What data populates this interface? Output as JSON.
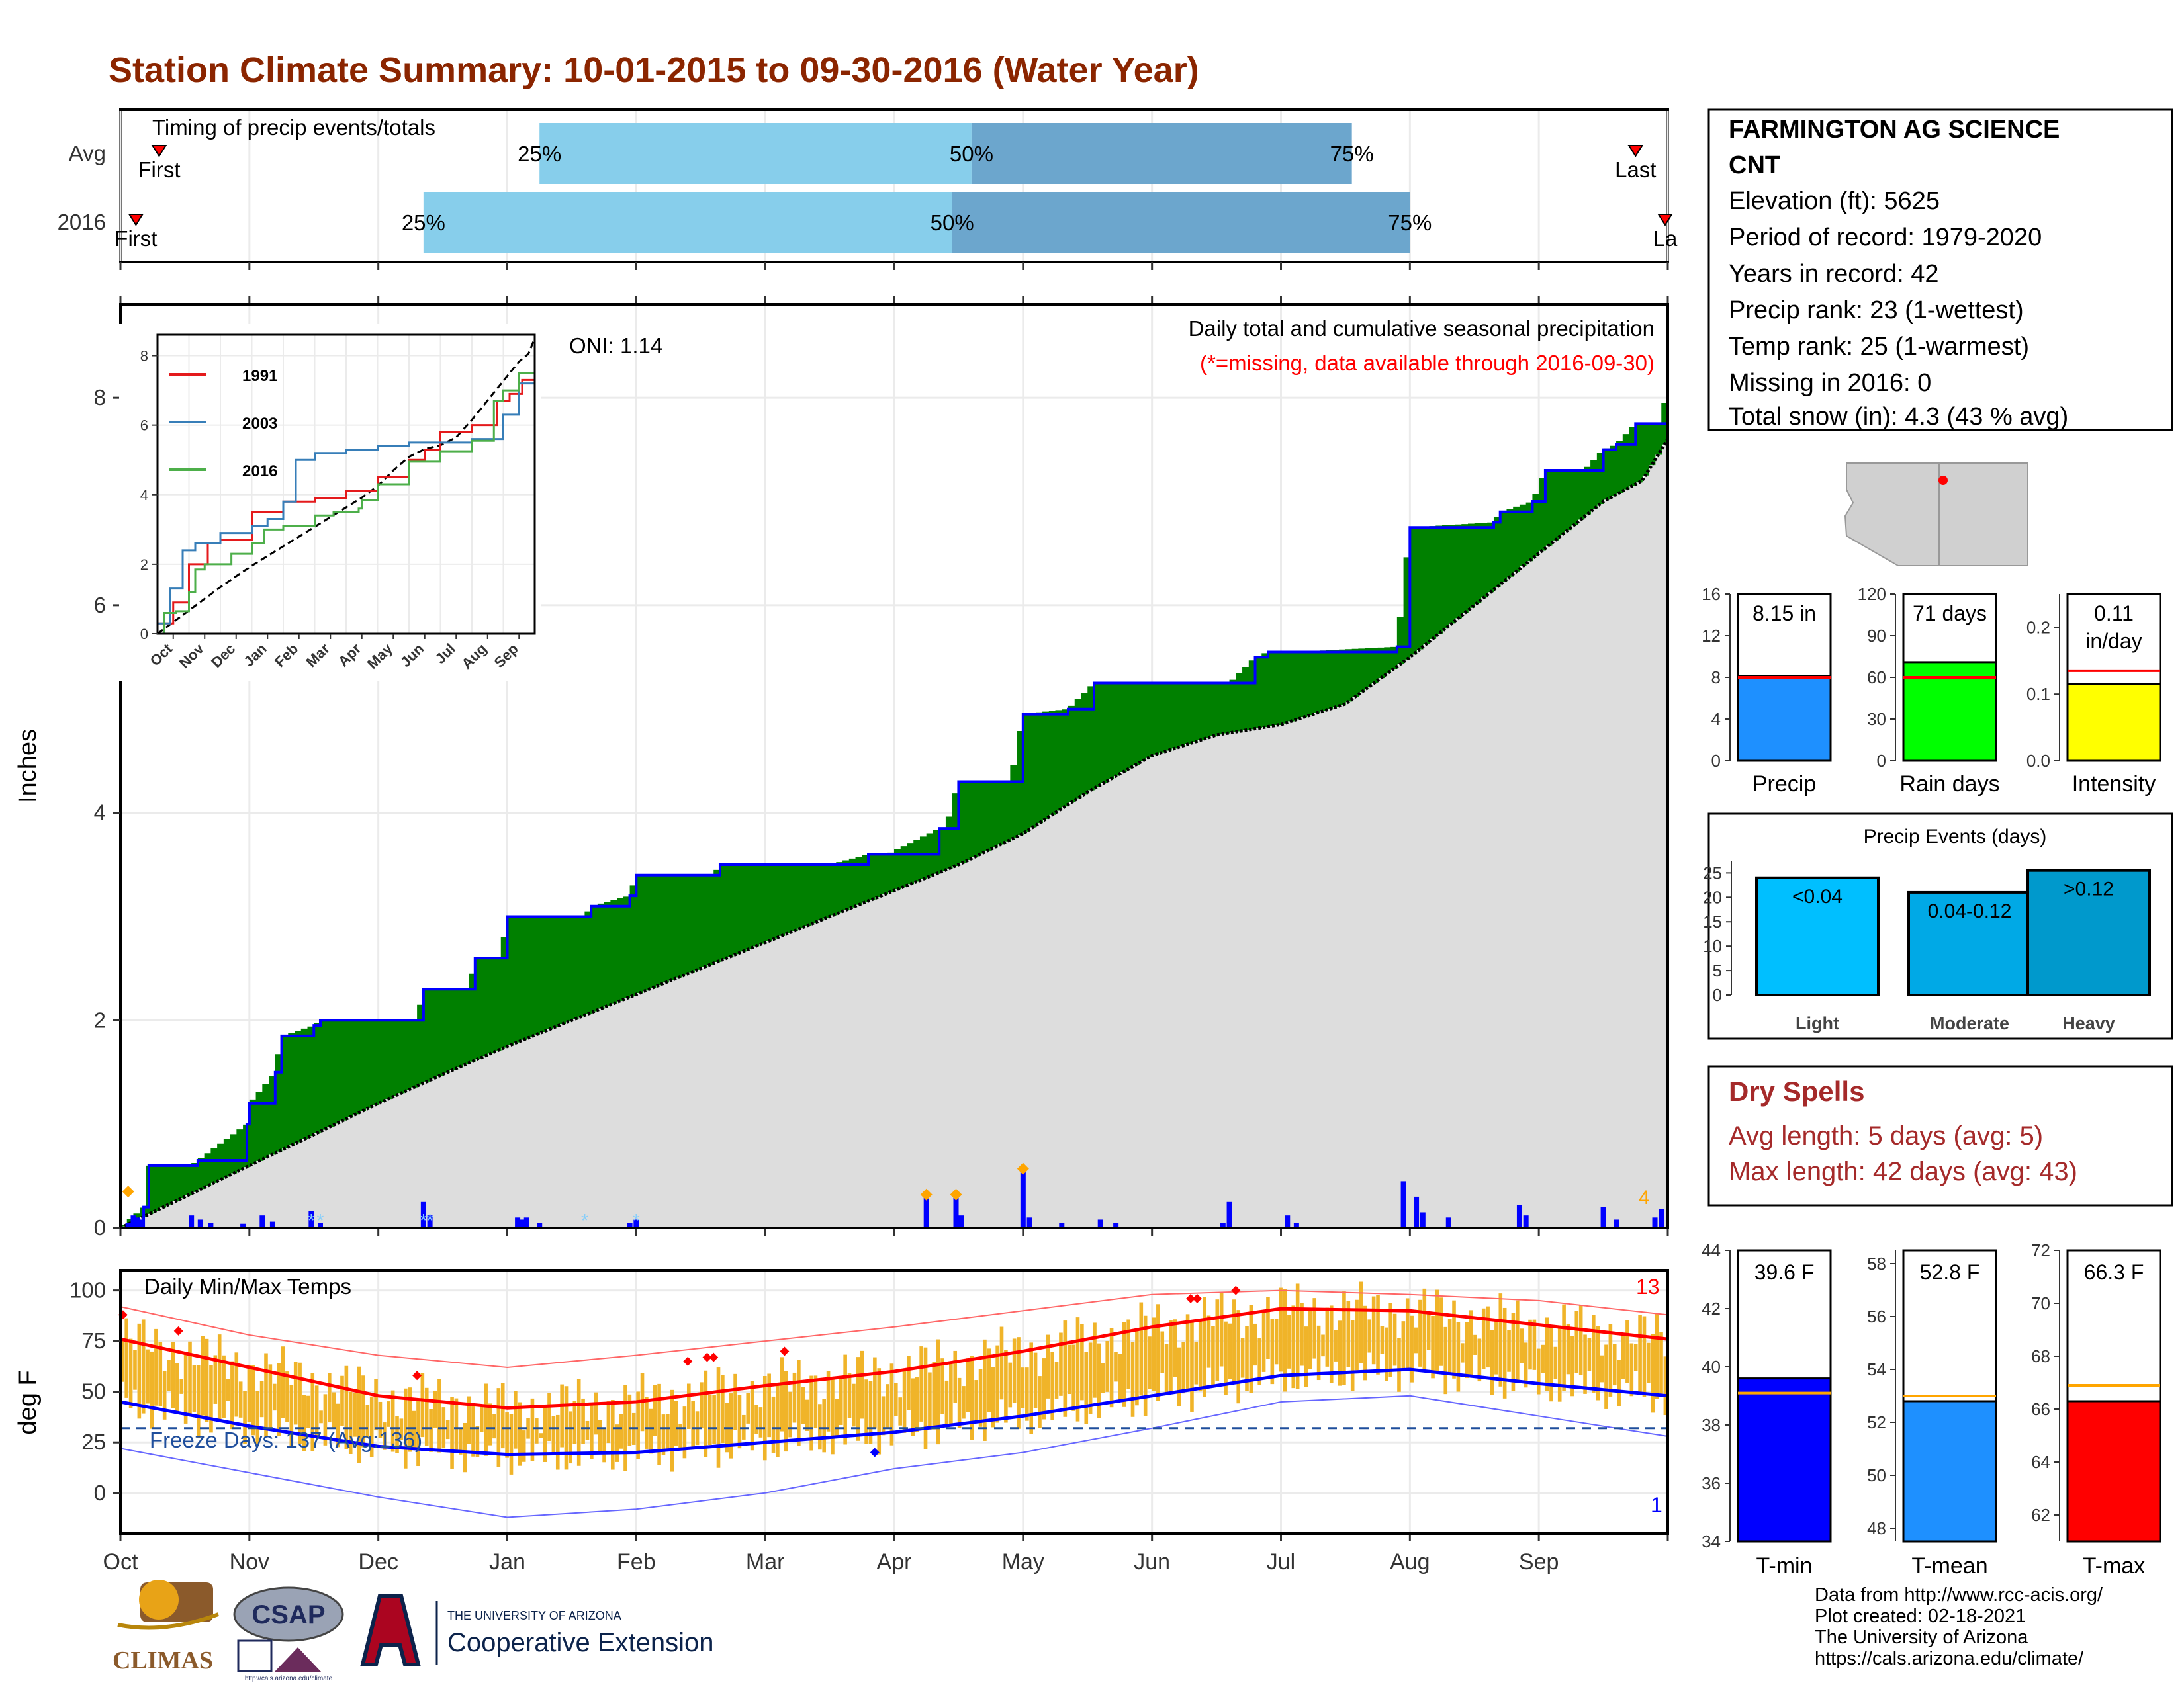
{
  "title": "Station Climate Summary: 10-01-2015 to 09-30-2016 (Water Year)",
  "colors": {
    "title": "#8B2500",
    "green": "#008000",
    "brown": "#8B5A2B",
    "normal_fill": "#DDDDDD",
    "precip_blue": "#0000FF",
    "light_blue": "#87CEEB",
    "dark_blue": "#6CA6CD",
    "temp_bar": "#F0B429",
    "max_red": "#FF0000",
    "min_blue": "#0000FF",
    "dry_spell": "#A52A2A",
    "accent_orange": "#FFA500"
  },
  "timing_panel": {
    "label": "Timing of precip events/totals",
    "rows": [
      {
        "name": "Avg",
        "first_label": "First",
        "last_label": "Last",
        "p25": "25%",
        "p50": "50%",
        "p75": "75%",
        "first_month": 0.3,
        "last_month": 11.75,
        "q25_month": 3.25,
        "q50_month": 6.6,
        "q75_month": 9.55
      },
      {
        "name": "2016",
        "first_label": "First",
        "last_label": "La",
        "p25": "25%",
        "p50": "50%",
        "p75": "75%",
        "first_month": 0.12,
        "last_month": 12.0,
        "q25_month": 2.35,
        "q50_month": 6.45,
        "q75_month": 10.0
      }
    ]
  },
  "precip_panel": {
    "ylabel": "Inches",
    "header": "Daily total and cumulative seasonal precipitation",
    "missing_note": "(*=missing, data available through 2016-09-30)",
    "oni": "ONI: 1.14",
    "corner_count": "4",
    "y_ticks": [
      "0",
      "2",
      "4",
      "6",
      "8"
    ]
  },
  "inset": {
    "legend": [
      "1991",
      "2003",
      "2016"
    ],
    "legend_colors": [
      "#E41A1C",
      "#377EB8",
      "#4DAF4A"
    ],
    "x_ticks": [
      "Oct",
      "Nov",
      "Dec",
      "Jan",
      "Feb",
      "Mar",
      "Apr",
      "May",
      "Jun",
      "Jul",
      "Aug",
      "Sep"
    ],
    "y_ticks": [
      "0",
      "2",
      "4",
      "6",
      "8"
    ]
  },
  "temp_panel": {
    "ylabel": "deg F",
    "label": "Daily Min/Max Temps",
    "freeze_text": "Freeze Days: 137 (Avg:136)",
    "max_count": "13",
    "min_count": "1",
    "y_ticks": [
      "0",
      "25",
      "50",
      "75",
      "100"
    ]
  },
  "months": [
    "Oct",
    "Nov",
    "Dec",
    "Jan",
    "Feb",
    "Mar",
    "Apr",
    "May",
    "Jun",
    "Jul",
    "Aug",
    "Sep"
  ],
  "station_box": {
    "name_line1": "FARMINGTON AG SCIENCE",
    "name_line2": "CNT",
    "lines": [
      "Elevation (ft): 5625",
      "Period of record: 1979-2020",
      "Years in record: 42",
      "Precip rank: 23 (1-wettest)",
      "Temp rank: 25 (1-warmest)",
      "Missing in 2016: 0",
      "Total snow (in): 4.3 (43 % avg)"
    ]
  },
  "summary_bars": [
    {
      "label": "Precip",
      "value_text": "8.15 in",
      "value": 8.15,
      "avg": 8.0,
      "ymax": 16,
      "ticks": [
        "0",
        "4",
        "8",
        "12",
        "16"
      ],
      "color": "#1E90FF"
    },
    {
      "label": "Rain days",
      "value_text": "71 days",
      "value": 71,
      "avg": 60,
      "ymax": 120,
      "ticks": [
        "0",
        "30",
        "60",
        "90",
        "120"
      ],
      "color": "#00FF00"
    },
    {
      "label": "Intensity",
      "value_text": "0.11",
      "value_text2": "in/day",
      "value": 0.115,
      "avg": 0.135,
      "ymax": 0.25,
      "ticks": [
        "0.0",
        "0.1",
        "0.2"
      ],
      "color": "#FFFF00"
    }
  ],
  "events": {
    "title": "Precip Events (days)",
    "ticks": [
      "0",
      "5",
      "10",
      "15",
      "20",
      "25"
    ],
    "bars": [
      {
        "cat": "Light",
        "label": "<0.04",
        "value": 24,
        "color": "#00BFFF"
      },
      {
        "cat": "Moderate",
        "label": "0.04-0.12",
        "value": 21,
        "color": "#00A9E6"
      },
      {
        "cat": "Heavy",
        "label": ">0.12",
        "value": 25.5,
        "color": "#0099CC"
      }
    ]
  },
  "dry_spells": {
    "title": "Dry Spells",
    "avg_line": "Avg length: 5 days (avg: 5)",
    "max_line": "Max length: 42 days (avg: 43)"
  },
  "temp_bars": [
    {
      "label": "T-min",
      "value_text": "39.6 F",
      "value": 39.6,
      "avg": 39.1,
      "ymin": 34,
      "ymax": 44,
      "ticks": [
        "34",
        "36",
        "38",
        "40",
        "42",
        "44"
      ],
      "color": "#0000FF"
    },
    {
      "label": "T-mean",
      "value_text": "52.8 F",
      "value": 52.8,
      "avg": 53.0,
      "ymin": 47.5,
      "ymax": 58.5,
      "ticks": [
        "48",
        "50",
        "52",
        "54",
        "56",
        "58"
      ],
      "color": "#1E90FF"
    },
    {
      "label": "T-max",
      "value_text": "66.3 F",
      "value": 66.3,
      "avg": 66.9,
      "ymin": 61,
      "ymax": 72,
      "ticks": [
        "62",
        "64",
        "66",
        "68",
        "70",
        "72"
      ],
      "color": "#FF0000"
    }
  ],
  "footer": {
    "credits": [
      "Data from http://www.rcc-acis.org/",
      "Plot created: 02-18-2021",
      "The University of Arizona",
      "https://cals.arizona.edu/climate/"
    ],
    "climas": "CLIMAS",
    "csap": "CSAP",
    "csap_url": "http://cals.arizona.edu/climate",
    "ua_small": "THE UNIVERSITY OF ARIZONA",
    "ua_big": "Cooperative Extension"
  },
  "chart_data": [
    {
      "type": "area",
      "title": "Daily total and cumulative seasonal precipitation",
      "ylabel": "Inches",
      "ylim": [
        0,
        8.9
      ],
      "xlim_months": [
        0,
        12
      ],
      "observed_cumulative": {
        "month": [
          0,
          0.18,
          0.22,
          0.55,
          0.6,
          0.98,
          1.0,
          1.2,
          1.25,
          1.5,
          1.55,
          2.3,
          2.35,
          2.7,
          2.75,
          2.95,
          3.0,
          3.6,
          3.65,
          3.95,
          4.0,
          4.6,
          4.65,
          4.95,
          5.2,
          5.5,
          5.8,
          5.95,
          6.35,
          6.4,
          6.5,
          6.9,
          7.0,
          7.35,
          7.55,
          7.95,
          8.05,
          8.35,
          8.6,
          8.8,
          8.9,
          9.05,
          9.1,
          9.9,
          10.0,
          10.65,
          10.7,
          10.95,
          11.05,
          11.35,
          11.5,
          11.6,
          11.75,
          11.95,
          12.0
        ],
        "inches": [
          0,
          0.2,
          0.6,
          0.6,
          0.65,
          1.0,
          1.2,
          1.5,
          1.85,
          1.95,
          2.0,
          2.0,
          2.3,
          2.3,
          2.6,
          2.6,
          3.0,
          3.0,
          3.1,
          3.2,
          3.4,
          3.4,
          3.5,
          3.5,
          3.5,
          3.5,
          3.6,
          3.6,
          3.85,
          3.85,
          4.3,
          4.3,
          4.95,
          5.0,
          5.25,
          5.25,
          5.25,
          5.25,
          5.25,
          5.5,
          5.55,
          5.55,
          5.55,
          5.6,
          6.75,
          6.8,
          6.9,
          7.0,
          7.3,
          7.3,
          7.5,
          7.55,
          7.75,
          7.75,
          8.15
        ]
      },
      "normal_cumulative": {
        "month": [
          0,
          0.5,
          1,
          1.5,
          2,
          2.5,
          3,
          3.5,
          4,
          4.5,
          5,
          5.5,
          6,
          6.5,
          7,
          7.5,
          8,
          8.5,
          9,
          9.5,
          10,
          10.5,
          11,
          11.5,
          11.8,
          12
        ],
        "inches": [
          0,
          0.3,
          0.6,
          0.9,
          1.2,
          1.48,
          1.75,
          2.0,
          2.25,
          2.5,
          2.75,
          3.0,
          3.25,
          3.5,
          3.8,
          4.2,
          4.55,
          4.75,
          4.85,
          5.05,
          5.5,
          6.0,
          6.5,
          7.0,
          7.2,
          7.6
        ]
      },
      "daily_bars": {
        "month": [
          0.06,
          0.1,
          0.13,
          0.16,
          0.55,
          0.62,
          0.7,
          0.95,
          1.1,
          1.18,
          1.48,
          1.55,
          2.35,
          2.4,
          3.08,
          3.12,
          3.15,
          3.25,
          3.95,
          4.0,
          6.25,
          6.48,
          6.52,
          7.0,
          7.05,
          7.3,
          7.6,
          7.72,
          8.55,
          8.6,
          9.05,
          9.12,
          9.95,
          10.05,
          10.1,
          10.3,
          10.85,
          10.9,
          11.5,
          11.6,
          11.9,
          11.95
        ],
        "inches": [
          0.05,
          0.12,
          0.1,
          0.08,
          0.12,
          0.08,
          0.05,
          0.04,
          0.12,
          0.06,
          0.16,
          0.05,
          0.25,
          0.12,
          0.1,
          0.08,
          0.1,
          0.05,
          0.05,
          0.08,
          0.3,
          0.3,
          0.12,
          0.55,
          0.1,
          0.05,
          0.08,
          0.05,
          0.05,
          0.25,
          0.12,
          0.05,
          0.45,
          0.3,
          0.15,
          0.1,
          0.22,
          0.12,
          0.2,
          0.08,
          0.1,
          0.18
        ]
      }
    },
    {
      "type": "line",
      "title": "",
      "series": [
        {
          "name": "1991",
          "month": [
            0,
            0.5,
            1,
            1.6,
            2,
            3,
            4,
            5,
            6,
            7,
            8,
            8.5,
            9,
            10,
            10.8,
            11.2,
            11.6,
            12
          ],
          "values": [
            0.3,
            0.9,
            2.0,
            2.6,
            2.7,
            3.5,
            3.8,
            3.9,
            4.1,
            4.5,
            5.0,
            5.3,
            5.8,
            6.0,
            6.7,
            6.9,
            7.3,
            8.5
          ]
        },
        {
          "name": "2003",
          "month": [
            0,
            0.4,
            0.8,
            1.2,
            2.0,
            3.0,
            3.5,
            4.0,
            4.4,
            5.0,
            6.0,
            7.0,
            8.0,
            9.0,
            10.0,
            11.0,
            11.5,
            12
          ],
          "values": [
            0.3,
            1.3,
            2.4,
            2.6,
            2.9,
            3.1,
            3.3,
            3.8,
            5.0,
            5.2,
            5.3,
            5.4,
            5.5,
            5.5,
            5.6,
            6.3,
            7.2,
            8.4
          ]
        },
        {
          "name": "2016",
          "month": [
            0,
            0.2,
            0.6,
            1.0,
            1.2,
            1.5,
            2.35,
            3.0,
            3.4,
            4.0,
            5.0,
            5.6,
            6.4,
            6.5,
            7.0,
            8.0,
            9.0,
            10.0,
            10.7,
            11.0,
            11.5,
            12.0
          ],
          "values": [
            0,
            0.6,
            0.65,
            1.2,
            1.85,
            2.0,
            2.3,
            2.6,
            3.0,
            3.1,
            3.4,
            3.5,
            3.6,
            3.85,
            4.3,
            4.95,
            5.25,
            5.55,
            6.7,
            7.0,
            7.5,
            8.15
          ]
        }
      ],
      "ylim": [
        0,
        8.5
      ]
    },
    {
      "type": "line",
      "title": "Daily Min/Max Temps",
      "ylabel": "deg F",
      "ylim": [
        -20,
        110
      ],
      "normal_max": {
        "month": [
          0,
          1,
          2,
          3,
          4,
          5,
          6,
          7,
          8,
          9,
          10,
          11,
          12
        ],
        "values": [
          76,
          62,
          48,
          42,
          45,
          53,
          60,
          70,
          82,
          91,
          90,
          83,
          76
        ]
      },
      "normal_min": {
        "month": [
          0,
          1,
          2,
          3,
          4,
          5,
          6,
          7,
          8,
          9,
          10,
          11,
          12
        ],
        "values": [
          45,
          33,
          23,
          19,
          20,
          25,
          30,
          38,
          48,
          58,
          61,
          54,
          48
        ]
      },
      "record_max": {
        "month": [
          0,
          1,
          2,
          3,
          4,
          5,
          6,
          7,
          8,
          9,
          10,
          11,
          12
        ],
        "values": [
          92,
          78,
          68,
          62,
          68,
          75,
          82,
          90,
          98,
          100,
          98,
          95,
          88
        ]
      },
      "record_min": {
        "month": [
          0,
          1,
          2,
          3,
          4,
          5,
          6,
          7,
          8,
          9,
          10,
          11,
          12
        ],
        "values": [
          22,
          10,
          -2,
          -12,
          -8,
          0,
          12,
          20,
          32,
          45,
          48,
          38,
          28
        ]
      },
      "freeze_line": 32
    },
    {
      "type": "bar",
      "categories": [
        "Precip"
      ],
      "values": [
        8.15
      ],
      "ylim": [
        0,
        16
      ]
    },
    {
      "type": "bar",
      "categories": [
        "Rain days"
      ],
      "values": [
        71
      ],
      "ylim": [
        0,
        120
      ]
    },
    {
      "type": "bar",
      "categories": [
        "Intensity"
      ],
      "values": [
        0.11
      ],
      "ylim": [
        0,
        0.25
      ]
    },
    {
      "type": "bar",
      "title": "Precip Events (days)",
      "categories": [
        "Light",
        "Moderate",
        "Heavy"
      ],
      "values": [
        24,
        21,
        25.5
      ],
      "ylim": [
        0,
        26
      ]
    },
    {
      "type": "bar",
      "categories": [
        "T-min"
      ],
      "values": [
        39.6
      ],
      "ylim": [
        34,
        44
      ]
    },
    {
      "type": "bar",
      "categories": [
        "T-mean"
      ],
      "values": [
        52.8
      ],
      "ylim": [
        47.5,
        58.5
      ]
    },
    {
      "type": "bar",
      "categories": [
        "T-max"
      ],
      "values": [
        66.3
      ],
      "ylim": [
        61,
        72
      ]
    }
  ]
}
